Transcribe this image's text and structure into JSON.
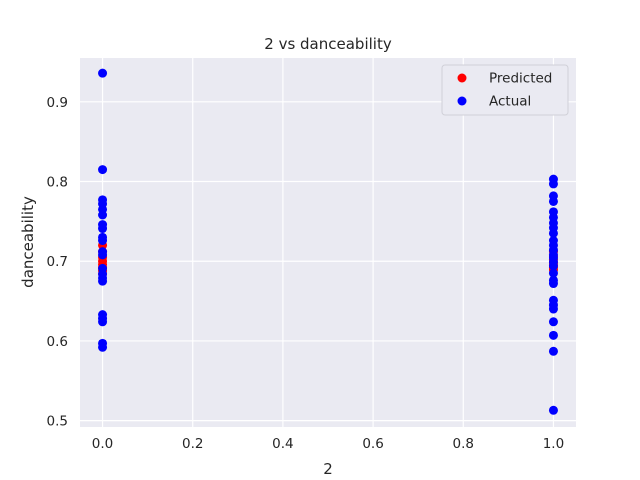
{
  "chart_data": {
    "type": "scatter",
    "title": "2 vs danceability",
    "xlabel": "2",
    "ylabel": "danceability",
    "xlim": [
      -0.05,
      1.05
    ],
    "ylim": [
      0.492,
      0.955
    ],
    "xticks": [
      0.0,
      0.2,
      0.4,
      0.6,
      0.8,
      1.0
    ],
    "xtick_labels": [
      "0.0",
      "0.2",
      "0.4",
      "0.6",
      "0.8",
      "1.0"
    ],
    "yticks": [
      0.5,
      0.6,
      0.7,
      0.8,
      0.9
    ],
    "ytick_labels": [
      "0.5",
      "0.6",
      "0.7",
      "0.8",
      "0.9"
    ],
    "grid": true,
    "background": "#eaeaf2",
    "legend_position": "top-right",
    "series": [
      {
        "name": "Predicted",
        "color": "#ff0000",
        "points": [
          [
            0,
            0.72
          ],
          [
            0,
            0.712
          ],
          [
            0,
            0.705
          ],
          [
            0,
            0.7
          ],
          [
            0,
            0.696
          ],
          [
            0,
            0.692
          ],
          [
            0,
            0.688
          ],
          [
            0,
            0.684
          ],
          [
            1,
            0.712
          ],
          [
            1,
            0.706
          ],
          [
            1,
            0.702
          ],
          [
            1,
            0.698
          ],
          [
            1,
            0.695
          ],
          [
            1,
            0.692
          ],
          [
            1,
            0.689
          ]
        ]
      },
      {
        "name": "Actual",
        "color": "#0000ff",
        "points": [
          [
            0,
            0.936
          ],
          [
            0,
            0.815
          ],
          [
            0,
            0.777
          ],
          [
            0,
            0.772
          ],
          [
            0,
            0.765
          ],
          [
            0,
            0.758
          ],
          [
            0,
            0.746
          ],
          [
            0,
            0.741
          ],
          [
            0,
            0.73
          ],
          [
            0,
            0.726
          ],
          [
            0,
            0.712
          ],
          [
            0,
            0.708
          ],
          [
            0,
            0.691
          ],
          [
            0,
            0.684
          ],
          [
            0,
            0.679
          ],
          [
            0,
            0.675
          ],
          [
            0,
            0.633
          ],
          [
            0,
            0.628
          ],
          [
            0,
            0.624
          ],
          [
            0,
            0.597
          ],
          [
            0,
            0.592
          ],
          [
            1,
            0.803
          ],
          [
            1,
            0.797
          ],
          [
            1,
            0.782
          ],
          [
            1,
            0.775
          ],
          [
            1,
            0.762
          ],
          [
            1,
            0.755
          ],
          [
            1,
            0.748
          ],
          [
            1,
            0.742
          ],
          [
            1,
            0.735
          ],
          [
            1,
            0.726
          ],
          [
            1,
            0.72
          ],
          [
            1,
            0.714
          ],
          [
            1,
            0.708
          ],
          [
            1,
            0.704
          ],
          [
            1,
            0.699
          ],
          [
            1,
            0.694
          ],
          [
            1,
            0.685
          ],
          [
            1,
            0.676
          ],
          [
            1,
            0.672
          ],
          [
            1,
            0.651
          ],
          [
            1,
            0.645
          ],
          [
            1,
            0.64
          ],
          [
            1,
            0.624
          ],
          [
            1,
            0.607
          ],
          [
            1,
            0.587
          ],
          [
            1,
            0.513
          ]
        ]
      }
    ]
  }
}
